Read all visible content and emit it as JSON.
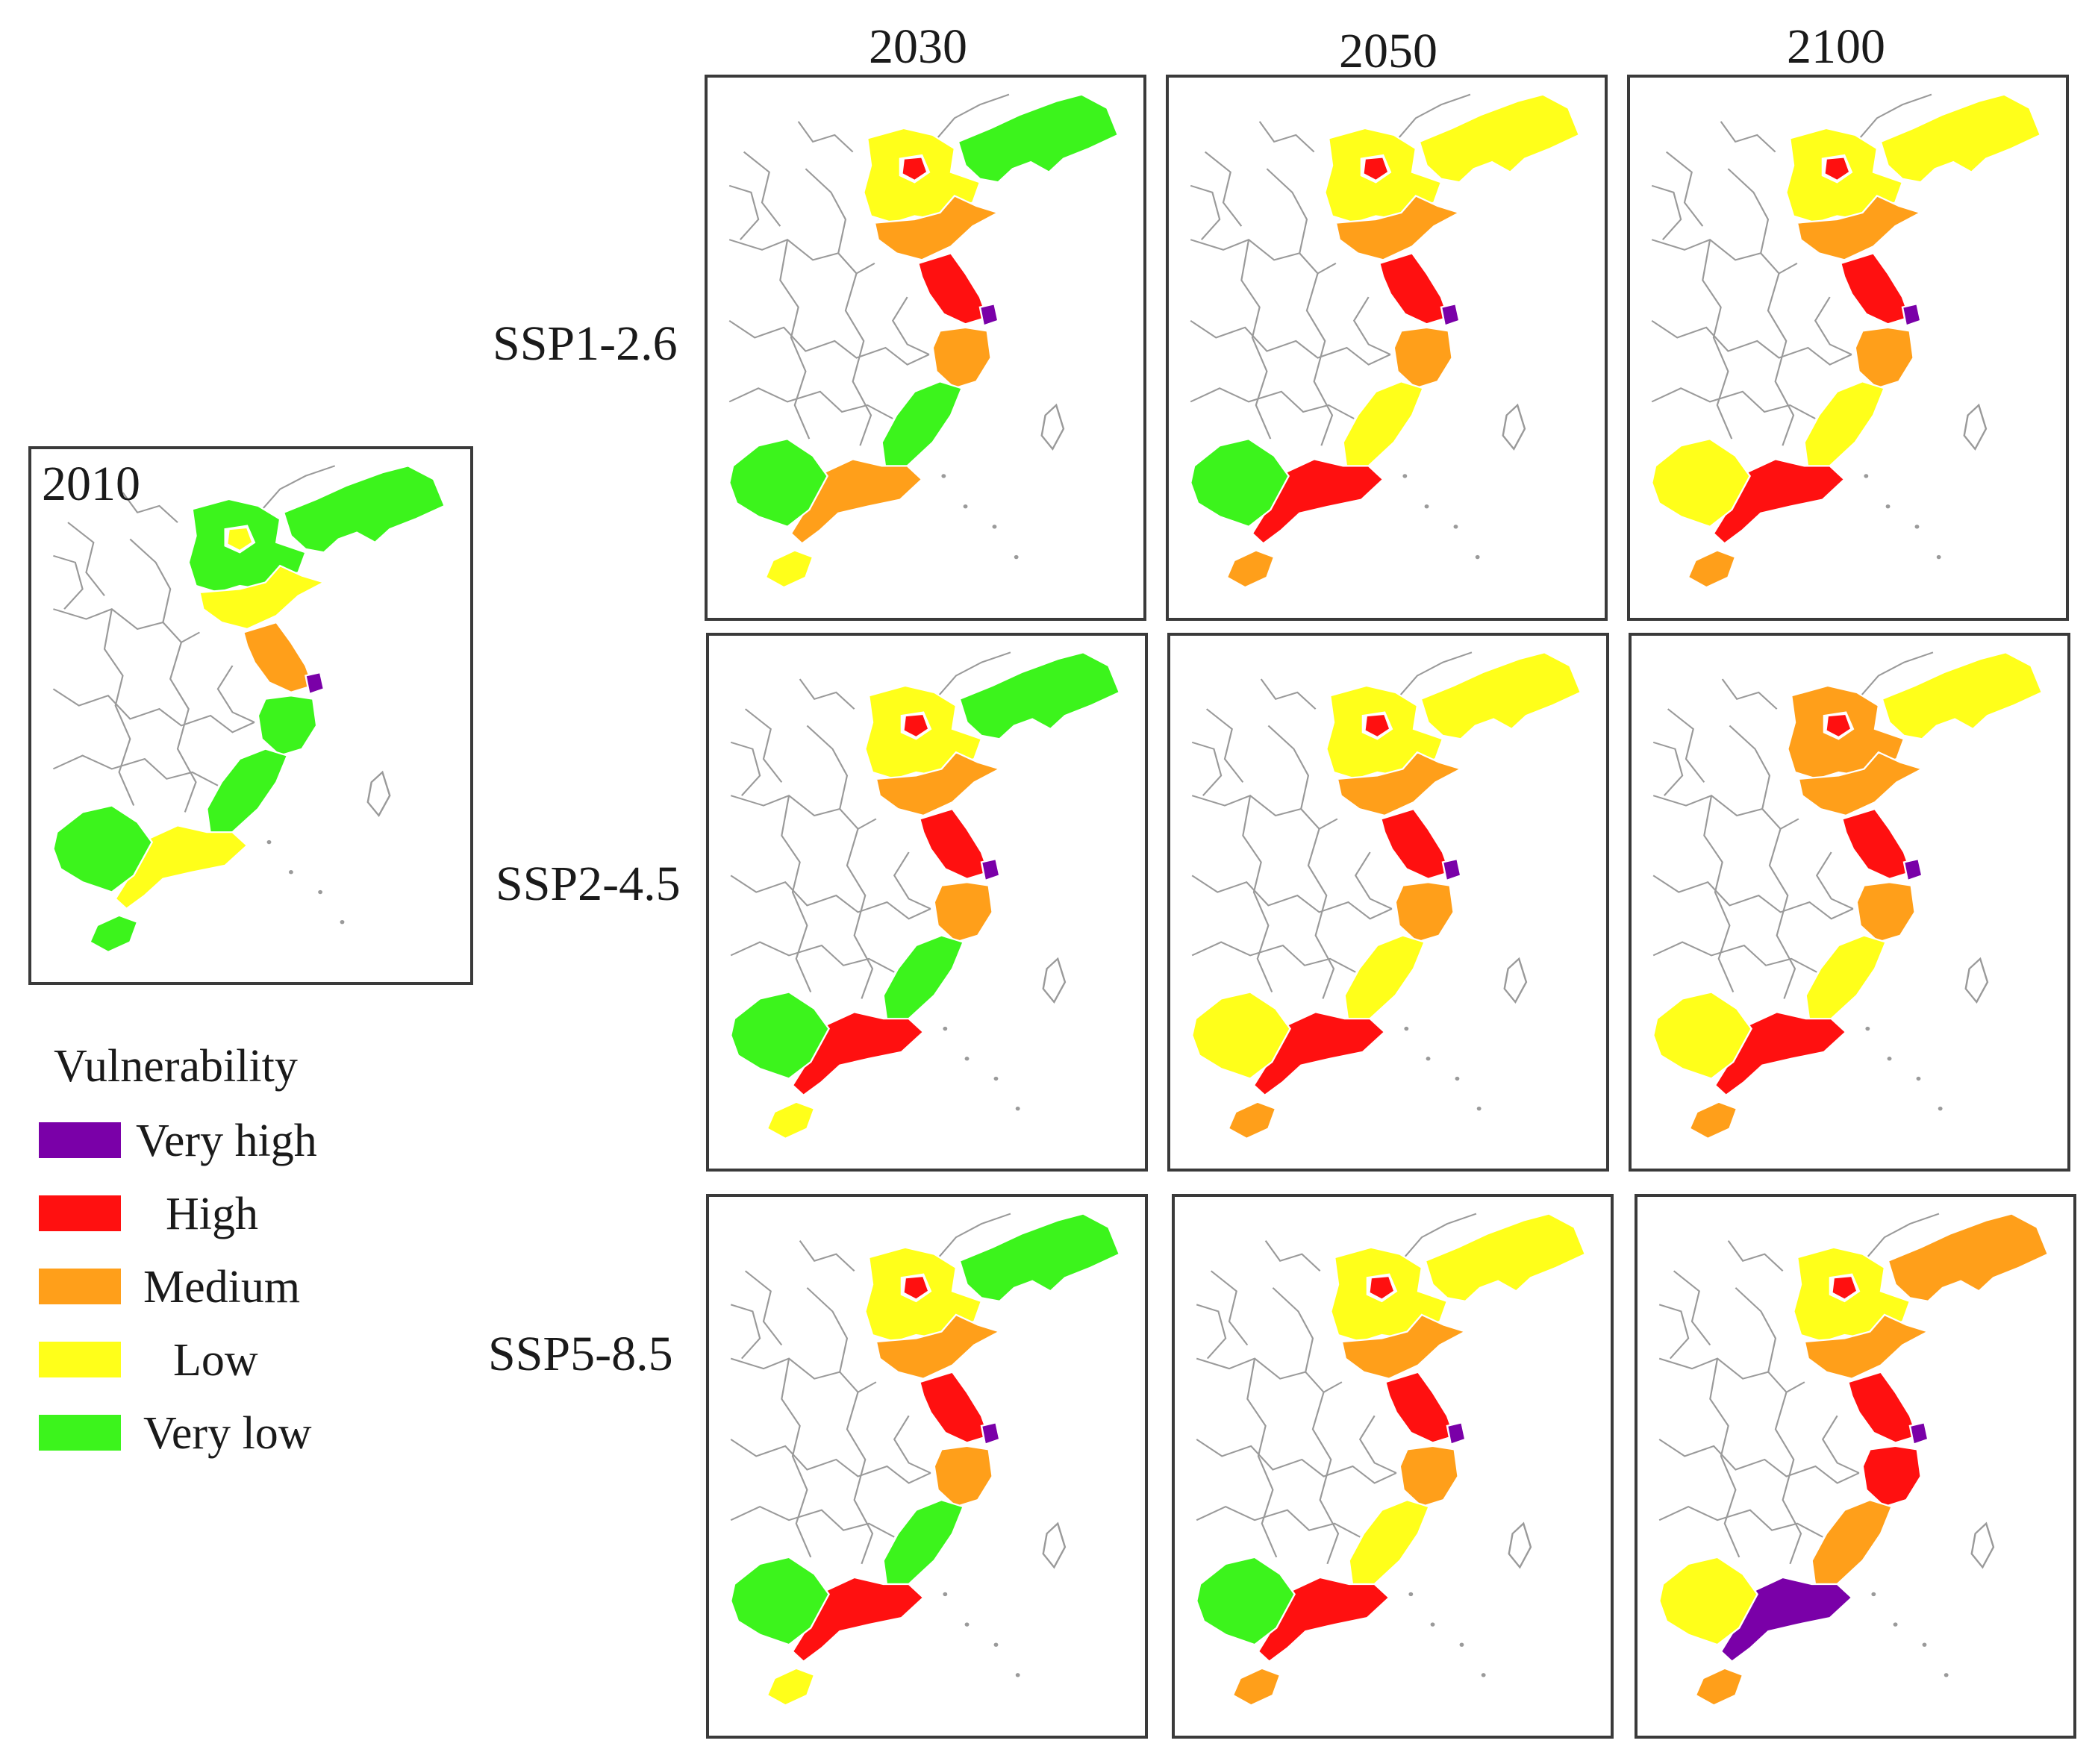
{
  "baseline": {
    "year": "2010",
    "vulnerability": [
      "very_low",
      "very_low",
      "low",
      "low",
      "medium",
      "very_high",
      "very_low",
      "very_low",
      "low",
      "very_low",
      "very_low"
    ]
  },
  "columns": [
    "2030",
    "2050",
    "2100"
  ],
  "rows": [
    {
      "label": "SSP1-2.6",
      "maps": [
        {
          "year": "2030",
          "vulnerability": [
            "low",
            "very_low",
            "high",
            "medium",
            "high",
            "very_high",
            "medium",
            "very_low",
            "medium",
            "very_low",
            "low"
          ]
        },
        {
          "year": "2050",
          "vulnerability": [
            "low",
            "low",
            "high",
            "medium",
            "high",
            "very_high",
            "medium",
            "low",
            "high",
            "very_low",
            "medium"
          ]
        },
        {
          "year": "2100",
          "vulnerability": [
            "low",
            "low",
            "high",
            "medium",
            "high",
            "very_high",
            "medium",
            "low",
            "high",
            "low",
            "medium"
          ]
        }
      ]
    },
    {
      "label": "SSP2-4.5",
      "maps": [
        {
          "year": "2030",
          "vulnerability": [
            "low",
            "very_low",
            "high",
            "medium",
            "high",
            "very_high",
            "medium",
            "very_low",
            "high",
            "very_low",
            "low"
          ]
        },
        {
          "year": "2050",
          "vulnerability": [
            "low",
            "low",
            "high",
            "medium",
            "high",
            "very_high",
            "medium",
            "low",
            "high",
            "low",
            "medium"
          ]
        },
        {
          "year": "2100",
          "vulnerability": [
            "medium",
            "low",
            "high",
            "medium",
            "high",
            "very_high",
            "medium",
            "low",
            "high",
            "low",
            "medium"
          ]
        }
      ]
    },
    {
      "label": "SSP5-8.5",
      "maps": [
        {
          "year": "2030",
          "vulnerability": [
            "low",
            "very_low",
            "high",
            "medium",
            "high",
            "very_high",
            "medium",
            "very_low",
            "high",
            "very_low",
            "low"
          ]
        },
        {
          "year": "2050",
          "vulnerability": [
            "low",
            "low",
            "high",
            "medium",
            "high",
            "very_high",
            "medium",
            "low",
            "high",
            "very_low",
            "medium"
          ]
        },
        {
          "year": "2100",
          "vulnerability": [
            "low",
            "medium",
            "high",
            "medium",
            "high",
            "very_high",
            "high",
            "medium",
            "very_high",
            "low",
            "medium"
          ]
        }
      ]
    }
  ],
  "legend": {
    "title": "Vulnerability",
    "items": [
      {
        "key": "very_high",
        "label": "Very high",
        "color": "#7a00a8"
      },
      {
        "key": "high",
        "label": "High",
        "color": "#ff1010"
      },
      {
        "key": "medium",
        "label": "Medium",
        "color": "#ff9f1a"
      },
      {
        "key": "low",
        "label": "Low",
        "color": "#ffff1a"
      },
      {
        "key": "very_low",
        "label": "Very low",
        "color": "#3cf41c"
      }
    ]
  }
}
